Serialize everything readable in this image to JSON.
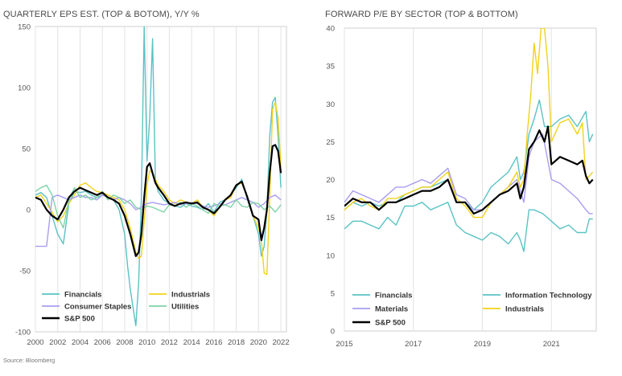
{
  "source": "Source: Bloomberg",
  "colors": {
    "financials": "#5bc2c4",
    "industrials": "#f2d21a",
    "consumer_staples": "#a89ef0",
    "utilities": "#7fd3a7",
    "sp500": "#000000",
    "info_tech": "#5bc2c4",
    "materials": "#a89ef0"
  },
  "chart_data": [
    {
      "type": "line",
      "title": "QUARTERLY EPS EST. (TOP & BOTOM), Y/Y %",
      "ylim": [
        -100,
        150
      ],
      "xlim": [
        2000,
        2022.5
      ],
      "yticks": [
        -100,
        -50,
        0,
        50,
        100,
        150
      ],
      "xticks": [
        2000,
        2002,
        2004,
        2006,
        2008,
        2010,
        2012,
        2014,
        2016,
        2018,
        2020,
        2022
      ],
      "legend_position": "bottom-left",
      "series": [
        {
          "name": "Financials",
          "color_key": "financials",
          "x": [
            2000,
            2000.5,
            2001,
            2001.5,
            2002,
            2002.5,
            2003,
            2003.5,
            2004,
            2004.5,
            2005,
            2005.5,
            2006,
            2006.5,
            2007,
            2007.5,
            2008,
            2008.25,
            2008.5,
            2008.75,
            2009,
            2009.25,
            2009.5,
            2009.75,
            2010,
            2010.25,
            2010.5,
            2010.75,
            2011,
            2011.5,
            2012,
            2012.5,
            2013,
            2013.5,
            2014,
            2014.5,
            2015,
            2015.5,
            2016,
            2016.5,
            2017,
            2017.5,
            2018,
            2018.5,
            2019,
            2019.5,
            2020,
            2020.25,
            2020.5,
            2020.75,
            2021,
            2021.25,
            2021.5,
            2021.75,
            2022
          ],
          "y": [
            12,
            14,
            10,
            -5,
            -20,
            -28,
            5,
            15,
            14,
            15,
            12,
            10,
            12,
            10,
            8,
            0,
            -20,
            -45,
            -65,
            -80,
            -95,
            -60,
            10,
            150,
            40,
            75,
            140,
            25,
            15,
            8,
            5,
            3,
            2,
            5,
            3,
            2,
            0,
            5,
            -2,
            6,
            8,
            12,
            18,
            25,
            8,
            -5,
            -20,
            -38,
            -30,
            0,
            60,
            88,
            92,
            60,
            18
          ]
        },
        {
          "name": "Industrials",
          "color_key": "industrials",
          "x": [
            2000,
            2000.5,
            2001,
            2001.5,
            2002,
            2002.5,
            2003,
            2003.5,
            2004,
            2004.5,
            2005,
            2005.5,
            2006,
            2006.5,
            2007,
            2007.5,
            2008,
            2008.5,
            2009,
            2009.25,
            2009.5,
            2009.75,
            2010,
            2010.25,
            2010.5,
            2010.75,
            2011,
            2011.5,
            2012,
            2012.5,
            2013,
            2013.5,
            2014,
            2014.5,
            2015,
            2015.5,
            2016,
            2016.5,
            2017,
            2017.5,
            2018,
            2018.5,
            2019,
            2019.5,
            2020,
            2020.25,
            2020.5,
            2020.75,
            2021,
            2021.25,
            2021.5,
            2021.75,
            2022
          ],
          "y": [
            10,
            12,
            5,
            -2,
            -10,
            -5,
            5,
            12,
            20,
            22,
            18,
            15,
            14,
            12,
            10,
            8,
            0,
            -15,
            -35,
            -40,
            -38,
            -10,
            20,
            32,
            30,
            25,
            20,
            15,
            8,
            5,
            8,
            6,
            5,
            8,
            2,
            0,
            -5,
            2,
            8,
            10,
            20,
            22,
            10,
            -5,
            -15,
            -25,
            -52,
            -53,
            10,
            82,
            88,
            75,
            35
          ]
        },
        {
          "name": "Consumer Staples",
          "color_key": "consumer_staples",
          "x": [
            2000,
            2000.5,
            2001,
            2001.5,
            2002,
            2002.5,
            2003,
            2003.5,
            2004,
            2004.5,
            2005,
            2005.5,
            2006,
            2006.5,
            2007,
            2007.5,
            2008,
            2008.5,
            2009,
            2009.5,
            2010,
            2010.5,
            2011,
            2011.5,
            2012,
            2012.5,
            2013,
            2013.5,
            2014,
            2014.5,
            2015,
            2015.5,
            2016,
            2016.5,
            2017,
            2017.5,
            2018,
            2018.5,
            2019,
            2019.5,
            2020,
            2020.5,
            2021,
            2021.5,
            2022
          ],
          "y": [
            -30,
            -30,
            -30,
            10,
            12,
            10,
            8,
            10,
            12,
            10,
            10,
            8,
            12,
            10,
            8,
            10,
            8,
            5,
            0,
            2,
            5,
            6,
            5,
            4,
            5,
            6,
            4,
            5,
            6,
            5,
            3,
            2,
            3,
            5,
            4,
            6,
            8,
            10,
            8,
            6,
            2,
            5,
            10,
            12,
            8
          ]
        },
        {
          "name": "Utilities",
          "color_key": "utilities",
          "x": [
            2000,
            2000.5,
            2001,
            2001.5,
            2002,
            2002.5,
            2003,
            2003.5,
            2004,
            2004.5,
            2005,
            2005.5,
            2006,
            2006.5,
            2007,
            2007.5,
            2008,
            2008.5,
            2009,
            2009.5,
            2010,
            2010.5,
            2011,
            2011.5,
            2012,
            2012.5,
            2013,
            2013.5,
            2014,
            2014.5,
            2015,
            2015.5,
            2016,
            2016.5,
            2017,
            2017.5,
            2018,
            2018.5,
            2019,
            2019.5,
            2020,
            2020.5,
            2021,
            2021.5,
            2022
          ],
          "y": [
            15,
            18,
            20,
            12,
            -5,
            -15,
            8,
            18,
            10,
            12,
            8,
            10,
            15,
            8,
            12,
            10,
            5,
            8,
            2,
            0,
            3,
            2,
            0,
            -2,
            4,
            3,
            6,
            2,
            5,
            3,
            0,
            -3,
            5,
            3,
            4,
            2,
            8,
            3,
            2,
            6,
            5,
            0,
            3,
            -2,
            4
          ]
        },
        {
          "name": "S&P 500",
          "color_key": "sp500",
          "x": [
            2000,
            2000.5,
            2001,
            2001.5,
            2002,
            2002.5,
            2003,
            2003.5,
            2004,
            2004.5,
            2005,
            2005.5,
            2006,
            2006.5,
            2007,
            2007.5,
            2008,
            2008.5,
            2009,
            2009.25,
            2009.5,
            2009.75,
            2010,
            2010.25,
            2010.5,
            2010.75,
            2011,
            2011.5,
            2012,
            2012.5,
            2013,
            2013.5,
            2014,
            2014.5,
            2015,
            2015.5,
            2016,
            2016.5,
            2017,
            2017.5,
            2018,
            2018.5,
            2019,
            2019.5,
            2020,
            2020.25,
            2020.5,
            2020.75,
            2021,
            2021.25,
            2021.5,
            2021.75,
            2022
          ],
          "y": [
            10,
            8,
            0,
            -5,
            -8,
            0,
            10,
            15,
            18,
            16,
            14,
            12,
            14,
            10,
            8,
            5,
            -5,
            -20,
            -38,
            -35,
            -20,
            10,
            35,
            38,
            30,
            22,
            18,
            12,
            5,
            3,
            5,
            6,
            5,
            6,
            2,
            0,
            -3,
            2,
            8,
            12,
            20,
            23,
            10,
            -5,
            -8,
            -25,
            -15,
            0,
            30,
            52,
            53,
            48,
            30
          ]
        }
      ]
    },
    {
      "type": "line",
      "title": "FORWARD P/E BY SECTOR (TOP & BOTTOM)",
      "ylim": [
        0,
        40
      ],
      "xlim": [
        2015,
        2022.3
      ],
      "yticks": [
        0,
        5,
        10,
        15,
        20,
        25,
        30,
        35,
        40
      ],
      "xticks": [
        2015,
        2017,
        2019,
        2021
      ],
      "legend_position": "bottom",
      "series": [
        {
          "name": "Financials",
          "color_key": "financials",
          "x": [
            2015,
            2015.25,
            2015.5,
            2015.75,
            2016,
            2016.25,
            2016.5,
            2016.75,
            2017,
            2017.25,
            2017.5,
            2017.75,
            2018,
            2018.25,
            2018.5,
            2018.75,
            2019,
            2019.25,
            2019.5,
            2019.75,
            2020,
            2020.1,
            2020.2,
            2020.35,
            2020.5,
            2020.75,
            2021,
            2021.25,
            2021.5,
            2021.75,
            2022,
            2022.1,
            2022.2
          ],
          "y": [
            13.5,
            14.5,
            14.5,
            14,
            13.5,
            15,
            14,
            16.5,
            16.5,
            17,
            16,
            16.5,
            17,
            14,
            13,
            12.5,
            12,
            13,
            12.5,
            11.5,
            13,
            12,
            10.5,
            16,
            16,
            15.5,
            14.5,
            13.5,
            14,
            13,
            13,
            14.8,
            14.8
          ]
        },
        {
          "name": "Information Technology",
          "color_key": "info_tech",
          "x": [
            2015,
            2015.25,
            2015.5,
            2015.75,
            2016,
            2016.25,
            2016.5,
            2016.75,
            2017,
            2017.25,
            2017.5,
            2017.75,
            2018,
            2018.25,
            2018.5,
            2018.75,
            2019,
            2019.25,
            2019.5,
            2019.75,
            2020,
            2020.1,
            2020.2,
            2020.35,
            2020.5,
            2020.65,
            2020.8,
            2021,
            2021.25,
            2021.5,
            2021.75,
            2022,
            2022.1,
            2022.2
          ],
          "y": [
            16,
            17,
            16.5,
            17,
            16.5,
            17,
            17,
            18,
            18.5,
            19,
            19,
            19.5,
            20,
            17,
            17,
            16,
            17,
            19,
            20,
            21,
            23,
            20,
            21,
            26,
            28,
            30.5,
            27,
            27,
            28,
            28.5,
            27,
            29,
            25,
            26
          ]
        },
        {
          "name": "Materials",
          "color_key": "materials",
          "x": [
            2015,
            2015.25,
            2015.5,
            2015.75,
            2016,
            2016.25,
            2016.5,
            2016.75,
            2017,
            2017.25,
            2017.5,
            2017.75,
            2018,
            2018.25,
            2018.5,
            2018.75,
            2019,
            2019.25,
            2019.5,
            2019.75,
            2020,
            2020.2,
            2020.35,
            2020.5,
            2020.75,
            2021,
            2021.25,
            2021.5,
            2021.75,
            2022,
            2022.1,
            2022.2
          ],
          "y": [
            17,
            18.5,
            18,
            17.5,
            17,
            18,
            19,
            19,
            19.5,
            20,
            19.5,
            20.5,
            21.5,
            18,
            17.5,
            16,
            16,
            17,
            18,
            19,
            20,
            17,
            23,
            25,
            26,
            20,
            19.5,
            18.5,
            17.5,
            16,
            15.5,
            15.5
          ]
        },
        {
          "name": "Industrials",
          "color_key": "industrials",
          "x": [
            2015,
            2015.25,
            2015.5,
            2015.75,
            2016,
            2016.25,
            2016.5,
            2016.75,
            2017,
            2017.25,
            2017.5,
            2017.75,
            2018,
            2018.25,
            2018.5,
            2018.75,
            2019,
            2019.25,
            2019.5,
            2019.75,
            2020,
            2020.1,
            2020.2,
            2020.3,
            2020.4,
            2020.5,
            2020.6,
            2020.7,
            2020.8,
            2020.9,
            2021,
            2021.1,
            2021.25,
            2021.5,
            2021.75,
            2021.9,
            2022,
            2022.1,
            2022.2
          ],
          "y": [
            16,
            17,
            17.5,
            16.5,
            16,
            17.5,
            17.5,
            18,
            18.5,
            19,
            19,
            20,
            21,
            17.5,
            16.5,
            15,
            15,
            17,
            18,
            19,
            21,
            19,
            20,
            26,
            31,
            38,
            34,
            40,
            40,
            35,
            25,
            26,
            27.5,
            28,
            26,
            27.5,
            20,
            20.5,
            21
          ]
        },
        {
          "name": "S&P 500",
          "color_key": "sp500",
          "x": [
            2015,
            2015.25,
            2015.5,
            2015.75,
            2016,
            2016.25,
            2016.5,
            2016.75,
            2017,
            2017.25,
            2017.5,
            2017.75,
            2018,
            2018.25,
            2018.5,
            2018.75,
            2019,
            2019.25,
            2019.5,
            2019.75,
            2020,
            2020.1,
            2020.2,
            2020.35,
            2020.5,
            2020.65,
            2020.8,
            2020.9,
            2021,
            2021.25,
            2021.5,
            2021.75,
            2021.9,
            2022,
            2022.1,
            2022.2
          ],
          "y": [
            16.5,
            17.5,
            17,
            17,
            16,
            17,
            17,
            17.5,
            18,
            18.5,
            18.5,
            19,
            20,
            17,
            17,
            15.5,
            16,
            17,
            18,
            18.5,
            19.5,
            17.5,
            19,
            24,
            25,
            26.5,
            25,
            27,
            22,
            23,
            22.5,
            22,
            22.5,
            20.5,
            19.5,
            20
          ]
        }
      ]
    }
  ]
}
